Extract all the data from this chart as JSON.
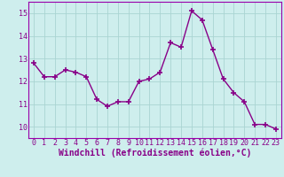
{
  "x": [
    0,
    1,
    2,
    3,
    4,
    5,
    6,
    7,
    8,
    9,
    10,
    11,
    12,
    13,
    14,
    15,
    16,
    17,
    18,
    19,
    20,
    21,
    22,
    23
  ],
  "y": [
    12.8,
    12.2,
    12.2,
    12.5,
    12.4,
    12.2,
    11.2,
    10.9,
    11.1,
    11.1,
    12.0,
    12.1,
    12.4,
    13.7,
    13.5,
    15.1,
    14.7,
    13.4,
    12.1,
    11.5,
    11.1,
    10.1,
    10.1,
    9.9
  ],
  "line_color": "#880088",
  "marker": "+",
  "markersize": 4,
  "linewidth": 1.0,
  "xlim": [
    -0.5,
    23.5
  ],
  "ylim": [
    9.5,
    15.5
  ],
  "yticks": [
    10,
    11,
    12,
    13,
    14,
    15
  ],
  "xticks": [
    0,
    1,
    2,
    3,
    4,
    5,
    6,
    7,
    8,
    9,
    10,
    11,
    12,
    13,
    14,
    15,
    16,
    17,
    18,
    19,
    20,
    21,
    22,
    23
  ],
  "xlabel": "Windchill (Refroidissement éolien,°C)",
  "xlabel_fontsize": 7,
  "tick_fontsize": 6,
  "bg_color": "#ceeeed",
  "grid_color": "#aad4d2",
  "spine_color": "#9900aa"
}
